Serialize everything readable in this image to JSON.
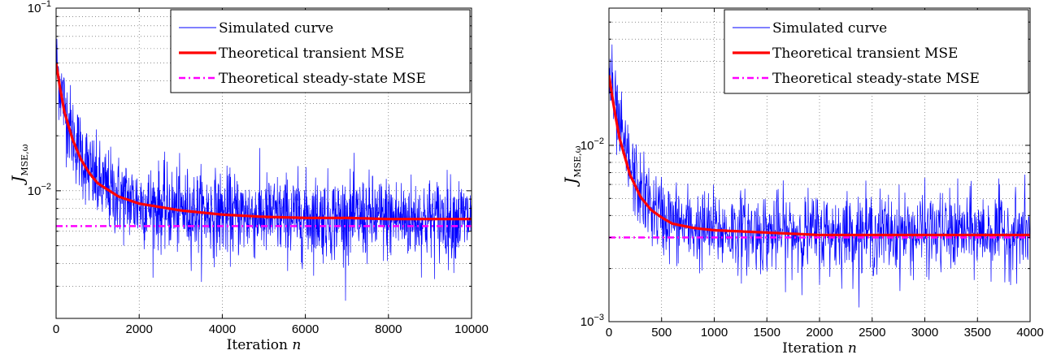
{
  "chart_data": [
    {
      "type": "line",
      "yscale": "log",
      "xlim": [
        0,
        10000
      ],
      "ylim": [
        0.002,
        0.1
      ],
      "xticks": [
        0,
        2000,
        4000,
        6000,
        8000,
        10000
      ],
      "xtick_labels": [
        "0",
        "2000",
        "4000",
        "6000",
        "8000",
        "10000"
      ],
      "ytick_labels": [
        {
          "value": 0.1,
          "base": "10",
          "exp": "−1"
        },
        {
          "value": 0.01,
          "base": "10",
          "exp": "−2"
        }
      ],
      "xlabel": {
        "text": "Iteration ",
        "var": "n"
      },
      "ylabel": {
        "main": "J",
        "sub": "MSE,ω"
      },
      "grid": true,
      "legend_position": "top-right",
      "series": [
        {
          "name": "Simulated curve",
          "color": "#0000ff",
          "style": "noisy",
          "x": [
            0,
            100,
            200,
            400,
            600,
            800,
            1000,
            1500,
            2000,
            3000,
            4000,
            5000,
            6000,
            7000,
            8000,
            9000,
            10000
          ],
          "y": [
            0.05,
            0.038,
            0.029,
            0.02,
            0.016,
            0.013,
            0.011,
            0.0093,
            0.0085,
            0.0078,
            0.0075,
            0.0073,
            0.0072,
            0.0071,
            0.0071,
            0.007,
            0.007
          ]
        },
        {
          "name": "Theoretical transient MSE",
          "color": "#ff0000",
          "style": "solid",
          "x": [
            0,
            100,
            200,
            400,
            600,
            800,
            1000,
            1500,
            2000,
            3000,
            4000,
            5000,
            6000,
            7000,
            8000,
            9000,
            10000
          ],
          "y": [
            0.05,
            0.036,
            0.027,
            0.019,
            0.0148,
            0.0125,
            0.011,
            0.0093,
            0.0085,
            0.0078,
            0.0074,
            0.0072,
            0.0071,
            0.0071,
            0.007,
            0.007,
            0.007
          ]
        },
        {
          "name": "Theoretical steady-state MSE",
          "color": "#ff00ff",
          "style": "dashdot",
          "x": [
            0,
            10000
          ],
          "y": [
            0.0064,
            0.0064
          ]
        }
      ]
    },
    {
      "type": "line",
      "yscale": "log",
      "xlim": [
        0,
        4000
      ],
      "ylim": [
        0.001,
        0.06
      ],
      "xticks": [
        0,
        500,
        1000,
        1500,
        2000,
        2500,
        3000,
        3500,
        4000
      ],
      "xtick_labels": [
        "0",
        "500",
        "1000",
        "1500",
        "2000",
        "2500",
        "3000",
        "3500",
        "4000"
      ],
      "ytick_labels": [
        {
          "value": 0.01,
          "base": "10",
          "exp": "−2"
        },
        {
          "value": 0.001,
          "base": "10",
          "exp": "−3"
        }
      ],
      "xlabel": {
        "text": "Iteration ",
        "var": "n"
      },
      "ylabel": {
        "main": "J",
        "sub": "MSE,ω"
      },
      "grid": true,
      "legend_position": "top-right",
      "series": [
        {
          "name": "Simulated curve",
          "color": "#0000ff",
          "style": "noisy",
          "x": [
            0,
            50,
            100,
            200,
            300,
            400,
            500,
            600,
            800,
            1000,
            1500,
            2000,
            2500,
            3000,
            3500,
            4000
          ],
          "y": [
            0.026,
            0.017,
            0.012,
            0.0075,
            0.0055,
            0.0045,
            0.004,
            0.0037,
            0.0034,
            0.0033,
            0.0032,
            0.0032,
            0.0032,
            0.0032,
            0.0032,
            0.0032
          ]
        },
        {
          "name": "Theoretical transient MSE",
          "color": "#ff0000",
          "style": "solid",
          "x": [
            0,
            50,
            100,
            200,
            300,
            400,
            500,
            600,
            800,
            1000,
            1500,
            2000,
            2500,
            3000,
            3500,
            4000
          ],
          "y": [
            0.025,
            0.016,
            0.011,
            0.0068,
            0.0051,
            0.0043,
            0.0039,
            0.0036,
            0.0034,
            0.0033,
            0.0032,
            0.0031,
            0.0031,
            0.0031,
            0.0031,
            0.0031
          ]
        },
        {
          "name": "Theoretical steady-state MSE",
          "color": "#ff00ff",
          "style": "dashdot",
          "x": [
            0,
            4000
          ],
          "y": [
            0.003,
            0.003
          ]
        }
      ]
    }
  ]
}
